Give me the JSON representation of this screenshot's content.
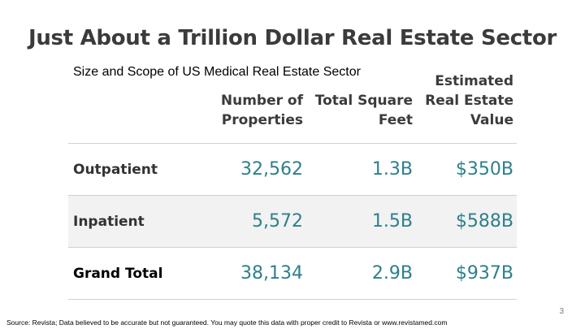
{
  "slide": {
    "title": "Just About a Trillion Dollar Real Estate Sector",
    "subtitle": "Size and Scope of US Medical Real Estate Sector",
    "page_number": "3",
    "source": "Source:  Revista; Data believed to be accurate but not guaranteed.  You may quote this data with proper credit to Revista or www.revistamed.com"
  },
  "table": {
    "headers": {
      "properties": [
        "Number of",
        "Properties"
      ],
      "square_feet": [
        "Total Square",
        "Feet"
      ],
      "value": [
        "Estimated",
        "Real Estate",
        "Value"
      ]
    },
    "rows": [
      {
        "label": "Outpatient",
        "properties": "32,562",
        "square_feet": "1.3B",
        "value": "$350B"
      },
      {
        "label": "Inpatient",
        "properties": "5,572",
        "square_feet": "1.5B",
        "value": "$588B"
      },
      {
        "label": "Grand Total",
        "properties": "38,134",
        "square_feet": "2.9B",
        "value": "$937B"
      }
    ]
  },
  "colors": {
    "value_text": "#2e7f8c",
    "title_text": "#3b3b3b",
    "shaded_row": "#f2f2f2"
  }
}
